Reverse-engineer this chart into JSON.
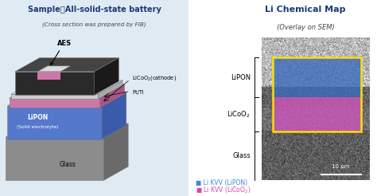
{
  "bg_color_left": "#e0eaf2",
  "bg_color_right": "#ffffff",
  "title_left_bold": "Sample：All-solid-state battery",
  "subtitle_left": "(Cross section was prepared by FIB)",
  "title_right": "Li Chemical Map",
  "subtitle_right": "(Overlay on SEM)",
  "title_color": "#1a3a7a",
  "glass_color_face": "#8c8c8c",
  "glass_color_side": "#6a6a6a",
  "glass_color_top": "#aaaaaa",
  "lipon_color_face": "#5577cc",
  "lipon_color_side": "#3a5aaa",
  "lipon_color_top": "#7799dd",
  "licoo2_color_face": "#cc77aa",
  "licoo2_color_side": "#aa5588",
  "licoo2_color_top": "#ddaacc",
  "ptTi_color_face": "#cccccc",
  "ptTi_color_side": "#aaaaaa",
  "ptTi_color_top": "#eeeeee",
  "dark_color_face": "#2a2a2a",
  "dark_color_side": "#1a1a1a",
  "dark_color_top": "#444444",
  "lipon_map_color": "#3a6bbf",
  "licoo2_map_color": "#cc55bb",
  "legend_lipon_color": "#3a88dd",
  "legend_licoo2_color": "#dd44aa",
  "scale_bar_text": "10 μm"
}
